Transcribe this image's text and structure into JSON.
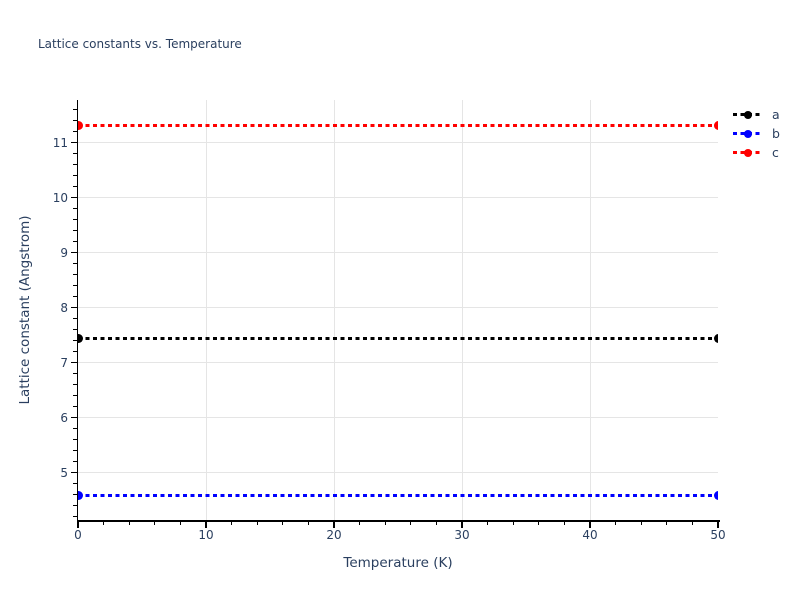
{
  "chart_data": {
    "type": "line",
    "title": "Lattice constants vs. Temperature",
    "xlabel": "Temperature (K)",
    "ylabel": "Lattice constant (Angstrom)",
    "xlim": [
      0,
      50
    ],
    "ylim": [
      4.14,
      11.78
    ],
    "x_ticks": [
      0,
      10,
      20,
      30,
      40,
      50
    ],
    "y_ticks": [
      5,
      6,
      7,
      8,
      9,
      10,
      11
    ],
    "x_minor_step": 2,
    "y_minor_step": 0.2,
    "grid": true,
    "legend_position": "top-right-outside",
    "series": [
      {
        "name": "a",
        "color": "#000000",
        "line_style": "dotted",
        "marker": "circle",
        "x": [
          0,
          50
        ],
        "values": [
          7.45,
          7.45
        ]
      },
      {
        "name": "b",
        "color": "#0000ff",
        "line_style": "dotted",
        "marker": "circle",
        "x": [
          0,
          50
        ],
        "values": [
          4.59,
          4.59
        ]
      },
      {
        "name": "c",
        "color": "#ff0000",
        "line_style": "dotted",
        "marker": "circle",
        "x": [
          0,
          50
        ],
        "values": [
          11.32,
          11.32
        ]
      }
    ],
    "colors": {
      "text": "#2a3f5f",
      "grid": "#e5e5e5",
      "spine": "#000000",
      "background": "#ffffff"
    }
  }
}
